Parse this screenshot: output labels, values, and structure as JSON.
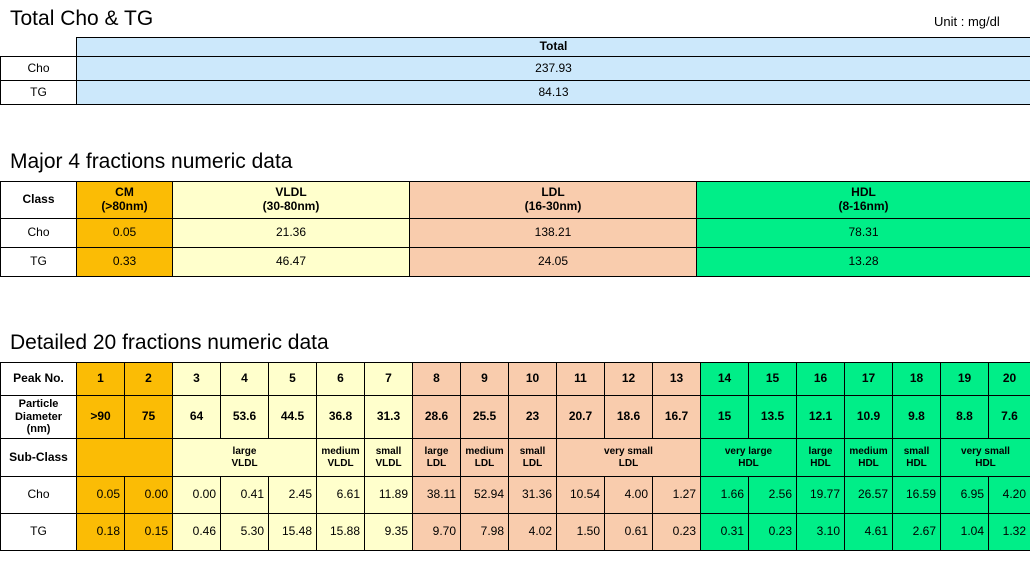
{
  "total": {
    "title": "Total Cho & TG",
    "unit": "Unit : mg/dl",
    "header": "Total",
    "rows": [
      {
        "label": "Cho",
        "value": "237.93"
      },
      {
        "label": "TG",
        "value": "84.13"
      }
    ]
  },
  "major": {
    "title": "Major  4 fractions numeric data",
    "class_label": "Class",
    "classes": [
      {
        "name": "CM",
        "range": "(>80nm)"
      },
      {
        "name": "VLDL",
        "range": "(30-80nm)"
      },
      {
        "name": "LDL",
        "range": "(16-30nm)"
      },
      {
        "name": "HDL",
        "range": "(8-16nm)"
      }
    ],
    "rows": [
      {
        "label": "Cho",
        "values": [
          "0.05",
          "21.36",
          "138.21",
          "78.31"
        ]
      },
      {
        "label": "TG",
        "values": [
          "0.33",
          "46.47",
          "24.05",
          "13.28"
        ]
      }
    ],
    "colors": {
      "CM": "#fbbc05",
      "VLDL": "#ffffcc",
      "LDL": "#f9ccad",
      "HDL": "#00ee88"
    }
  },
  "detailed": {
    "title": "Detailed 20 fractions numeric data",
    "peak_label": "Peak No.",
    "diameter_label": [
      "Particle",
      "Diameter",
      "(nm)"
    ],
    "subclass_label": "Sub-Class",
    "peaks": [
      "1",
      "2",
      "3",
      "4",
      "5",
      "6",
      "7",
      "8",
      "9",
      "10",
      "11",
      "12",
      "13",
      "14",
      "15",
      "16",
      "17",
      "18",
      "19",
      "20"
    ],
    "diameters": [
      ">90",
      "75",
      "64",
      "53.6",
      "44.5",
      "36.8",
      "31.3",
      "28.6",
      "25.5",
      "23",
      "20.7",
      "18.6",
      "16.7",
      "15",
      "13.5",
      "12.1",
      "10.9",
      "9.8",
      "8.8",
      "7.6"
    ],
    "subclasses": [
      {
        "line1": "large",
        "line2": "VLDL"
      },
      {
        "line1": "medium",
        "line2": "VLDL"
      },
      {
        "line1": "small",
        "line2": "VLDL"
      },
      {
        "line1": "large",
        "line2": "LDL"
      },
      {
        "line1": "medium",
        "line2": "LDL"
      },
      {
        "line1": "small",
        "line2": "LDL"
      },
      {
        "line1": "very small",
        "line2": "LDL"
      },
      {
        "line1": "very large",
        "line2": "HDL"
      },
      {
        "line1": "large",
        "line2": "HDL"
      },
      {
        "line1": "medium",
        "line2": "HDL"
      },
      {
        "line1": "small",
        "line2": "HDL"
      },
      {
        "line1": "very small",
        "line2": "HDL"
      }
    ],
    "rows": [
      {
        "label": "Cho",
        "values": [
          "0.05",
          "0.00",
          "0.00",
          "0.41",
          "2.45",
          "6.61",
          "11.89",
          "38.11",
          "52.94",
          "31.36",
          "10.54",
          "4.00",
          "1.27",
          "1.66",
          "2.56",
          "19.77",
          "26.57",
          "16.59",
          "6.95",
          "4.20"
        ]
      },
      {
        "label": "TG",
        "values": [
          "0.18",
          "0.15",
          "0.46",
          "5.30",
          "15.48",
          "15.88",
          "9.35",
          "9.70",
          "7.98",
          "4.02",
          "1.50",
          "0.61",
          "0.23",
          "0.31",
          "0.23",
          "3.10",
          "4.61",
          "2.67",
          "1.04",
          "1.32"
        ]
      }
    ]
  }
}
